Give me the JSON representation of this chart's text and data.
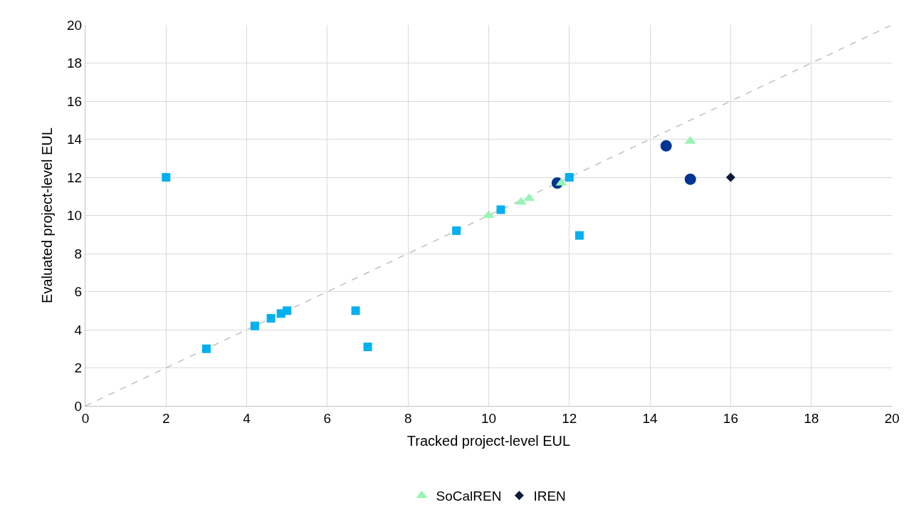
{
  "chart_data": {
    "type": "scatter",
    "xlabel": "Tracked project-level EUL",
    "ylabel": "Evaluated project-level EUL",
    "xlim": [
      0,
      20
    ],
    "ylim": [
      0,
      20
    ],
    "xticks": [
      0,
      2,
      4,
      6,
      8,
      10,
      12,
      14,
      16,
      18,
      20
    ],
    "yticks": [
      0,
      2,
      4,
      6,
      8,
      10,
      12,
      14,
      16,
      18,
      20
    ],
    "grid": true,
    "legend": "bottom",
    "series": [
      {
        "color": "#bfbfbf",
        "type": "line",
        "line_style": "dashed",
        "marker": "none",
        "x": [
          0,
          20
        ],
        "values": [
          0,
          20
        ]
      },
      {
        "color": "#00b0f0",
        "marker": "square",
        "x": [
          2,
          3,
          4.2,
          4.6,
          4.85,
          5,
          6.7,
          7,
          9.2,
          10.3,
          12,
          12.25
        ],
        "values": [
          12,
          3,
          4.2,
          4.6,
          4.85,
          5,
          5,
          3.1,
          9.2,
          10.3,
          12,
          8.95
        ]
      },
      {
        "color": "#003591",
        "marker": "circle",
        "x": [
          11.7,
          14.4,
          15
        ],
        "values": [
          11.7,
          13.65,
          11.9
        ]
      },
      {
        "name": "SoCalREN",
        "color": "#96f5b4",
        "marker": "triangle",
        "x": [
          10,
          10.8,
          11,
          11.8,
          15
        ],
        "values": [
          10,
          10.7,
          10.9,
          11.7,
          13.9
        ]
      },
      {
        "name": "IREN",
        "color": "#0c1a3a",
        "marker": "diamond",
        "x": [
          16
        ],
        "values": [
          12
        ]
      }
    ]
  }
}
